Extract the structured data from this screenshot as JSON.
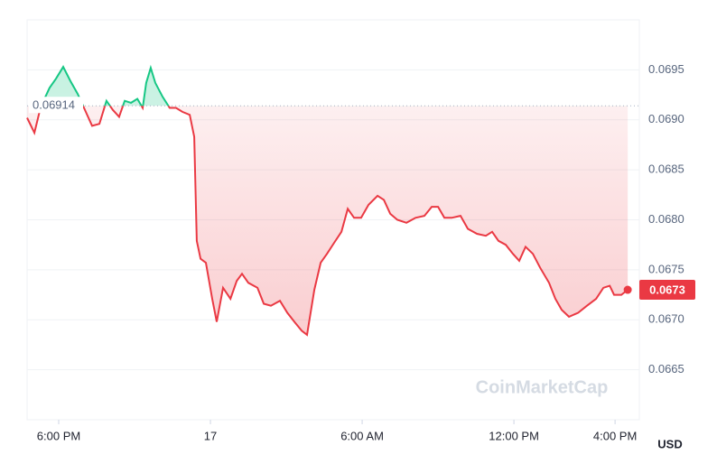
{
  "chart_data": {
    "type": "line",
    "x": [
      16.75,
      17.04,
      17.29,
      17.64,
      17.89,
      18.18,
      18.46,
      18.75,
      19.07,
      19.32,
      19.61,
      19.89,
      20.14,
      20.39,
      20.61,
      20.86,
      21.11,
      21.32,
      21.46,
      21.64,
      21.82,
      22.11,
      22.39,
      22.64,
      22.89,
      23.18,
      23.36,
      23.46,
      23.61,
      23.82,
      24.07,
      24.25,
      24.5,
      24.79,
      25.04,
      25.25,
      25.5,
      25.86,
      26.11,
      26.39,
      26.75,
      27.04,
      27.32,
      27.61,
      27.82,
      28.11,
      28.36,
      28.61,
      28.89,
      29.18,
      29.43,
      29.68,
      29.96,
      30.25,
      30.61,
      30.86,
      31.11,
      31.39,
      31.75,
      32.11,
      32.46,
      32.75,
      33.0,
      33.25,
      33.54,
      33.89,
      34.18,
      34.54,
      34.89,
      35.14,
      35.39,
      35.68,
      35.96,
      36.21,
      36.46,
      36.75,
      37.04,
      37.39,
      37.64,
      37.89,
      38.18,
      38.54,
      38.89,
      39.25,
      39.54,
      39.79,
      39.96,
      40.25,
      40.5
    ],
    "values": [
      0.06902,
      0.06887,
      0.06913,
      0.06932,
      0.06941,
      0.06953,
      0.06939,
      0.06926,
      0.06908,
      0.06894,
      0.06896,
      0.06919,
      0.0691,
      0.06903,
      0.06919,
      0.06917,
      0.06921,
      0.06912,
      0.06937,
      0.06952,
      0.06937,
      0.06923,
      0.06912,
      0.06912,
      0.06908,
      0.06905,
      0.06883,
      0.06779,
      0.06761,
      0.06757,
      0.06721,
      0.06698,
      0.06732,
      0.06721,
      0.06739,
      0.06746,
      0.06737,
      0.06732,
      0.06716,
      0.06714,
      0.06719,
      0.06707,
      0.06698,
      0.06689,
      0.06685,
      0.0673,
      0.06757,
      0.06766,
      0.06777,
      0.06788,
      0.06811,
      0.06802,
      0.06802,
      0.06815,
      0.06824,
      0.0682,
      0.06806,
      0.068,
      0.06797,
      0.06802,
      0.06804,
      0.06813,
      0.06813,
      0.06802,
      0.06802,
      0.06804,
      0.06791,
      0.06786,
      0.06784,
      0.06788,
      0.06779,
      0.06775,
      0.06766,
      0.06759,
      0.06773,
      0.06766,
      0.06752,
      0.06737,
      0.06721,
      0.0671,
      0.06703,
      0.06707,
      0.06714,
      0.06721,
      0.06732,
      0.06734,
      0.06725,
      0.06725,
      0.0673
    ],
    "up_color": "#16c784",
    "down_color": "#ea3943",
    "reference_value": 0.06914,
    "last_price": 0.0673,
    "xlim": [
      16.75,
      40.96
    ],
    "ylim": [
      0.066,
      0.07
    ],
    "xticks": [
      {
        "value": 18,
        "label": "6:00 PM"
      },
      {
        "value": 24,
        "label": "17"
      },
      {
        "value": 30,
        "label": "6:00 AM"
      },
      {
        "value": 36,
        "label": "12:00 PM"
      },
      {
        "value": 40,
        "label": "4:00 PM"
      }
    ],
    "yticks": [
      0.0665,
      {
        "value": 0.067,
        "label": "0.0670"
      },
      0.0675,
      {
        "value": 0.068,
        "label": "0.0680"
      },
      0.0685,
      {
        "value": 0.069,
        "label": "0.0690"
      },
      0.0695
    ],
    "currency": "USD",
    "watermark": "CoinMarketCap",
    "grid": true
  }
}
